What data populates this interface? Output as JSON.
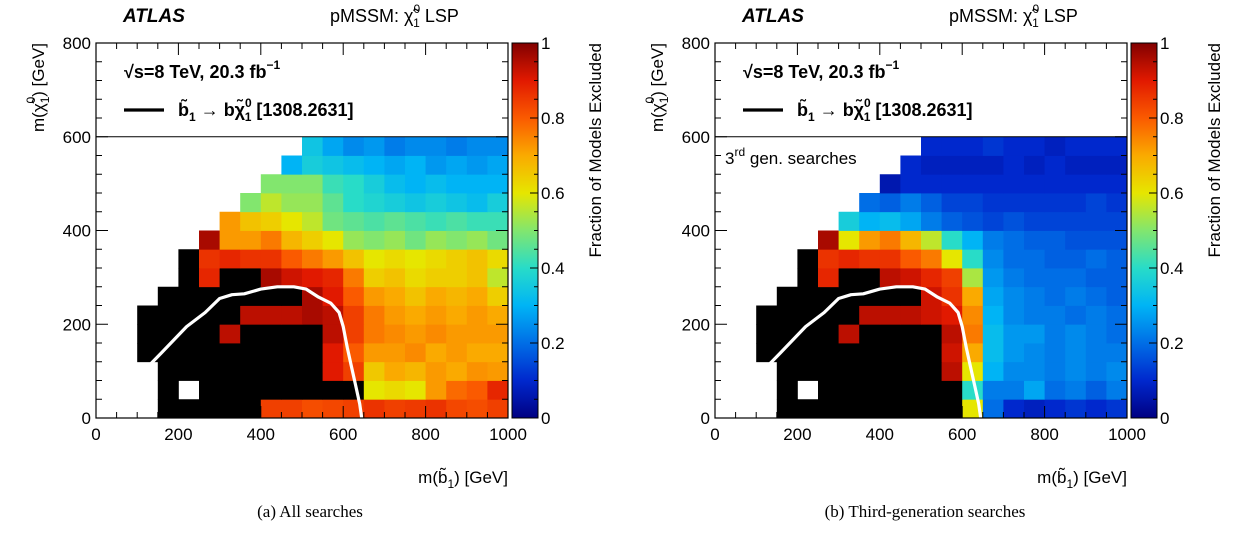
{
  "chart_data": [
    {
      "type": "heatmap",
      "experiment": "ATLAS",
      "model": "pMSSM: ",
      "model_symbol": "χ̃",
      "model_sup": "0",
      "model_sub": "1",
      "model_suffix": " LSP",
      "energy_label": "√s=8 TeV, 20.3 fb",
      "energy_sup": "−1",
      "legend_line": "b̃",
      "legend_sub1": "1",
      "legend_arrow": " → bχ̃",
      "legend_sup": "0",
      "legend_sub2": "1",
      "legend_ref": " [1308.2631]",
      "inner_label": "",
      "inner_label_sup": "",
      "inner_label_rest": "",
      "xlabel": "m(b̃",
      "xlabel_sub": "1",
      "xlabel_rest": ") [GeV]",
      "ylabel": "m(χ̃",
      "ylabel_sub": "1",
      "ylabel_sup": "0",
      "ylabel_rest": ") [GeV]",
      "zlabel": "Fraction of  Models Excluded",
      "xlim": [
        0,
        1000
      ],
      "ylim": [
        0,
        800
      ],
      "zlim": [
        0,
        1
      ],
      "x_ticks": [
        "0",
        "200",
        "400",
        "600",
        "800",
        "1000"
      ],
      "y_ticks": [
        "0",
        "200",
        "400",
        "600",
        "800"
      ],
      "z_ticks": [
        "0",
        "0.2",
        "0.4",
        "0.6",
        "0.8",
        "1"
      ],
      "x_bin_edges_start": 0,
      "x_bin_width": 50,
      "y_bin_edges_start": 0,
      "y_bin_width": 40,
      "rows": [
        [
          null,
          null,
          null,
          1.0,
          1.0,
          1.0,
          1.0,
          1.0,
          0.84,
          0.84,
          0.82,
          0.83,
          0.84,
          0.86,
          0.84,
          0.85,
          0.86,
          0.83,
          0.82,
          0.84
        ],
        [
          null,
          null,
          null,
          1.0,
          null,
          1.0,
          1.0,
          1.0,
          1.0,
          1.0,
          1.0,
          1.0,
          1.0,
          0.6,
          0.62,
          0.6,
          0.72,
          0.78,
          0.8,
          0.88
        ],
        [
          null,
          null,
          null,
          1.0,
          1.0,
          1.0,
          1.0,
          1.0,
          1.0,
          1.0,
          1.0,
          0.9,
          0.84,
          0.65,
          0.7,
          0.68,
          0.72,
          0.7,
          0.73,
          0.72
        ],
        [
          null,
          null,
          1.0,
          1.0,
          1.0,
          1.0,
          1.0,
          1.0,
          1.0,
          1.0,
          1.0,
          0.9,
          0.8,
          0.72,
          0.72,
          0.74,
          0.7,
          0.72,
          0.7,
          0.7
        ],
        [
          null,
          null,
          1.0,
          1.0,
          1.0,
          1.0,
          0.94,
          1.0,
          1.0,
          1.0,
          1.0,
          0.94,
          0.84,
          0.76,
          0.74,
          0.72,
          0.74,
          0.72,
          0.72,
          0.72
        ],
        [
          null,
          null,
          1.0,
          1.0,
          1.0,
          1.0,
          1.0,
          0.94,
          0.94,
          0.94,
          0.96,
          0.94,
          0.84,
          0.76,
          0.72,
          0.7,
          0.72,
          0.7,
          0.72,
          0.7
        ],
        [
          null,
          null,
          null,
          1.0,
          1.0,
          1.0,
          1.0,
          1.0,
          1.0,
          1.0,
          0.96,
          0.9,
          0.8,
          0.72,
          0.7,
          0.66,
          0.7,
          0.68,
          0.7,
          0.64
        ],
        [
          null,
          null,
          null,
          null,
          1.0,
          0.88,
          1.0,
          1.0,
          0.96,
          0.92,
          0.9,
          0.88,
          0.76,
          0.64,
          0.66,
          0.62,
          0.64,
          0.64,
          0.66,
          0.56
        ],
        [
          null,
          null,
          null,
          null,
          1.0,
          0.86,
          0.88,
          0.86,
          0.86,
          0.8,
          0.76,
          0.72,
          0.66,
          0.6,
          0.62,
          0.6,
          0.62,
          0.64,
          0.66,
          0.62
        ],
        [
          null,
          null,
          null,
          null,
          null,
          0.96,
          0.72,
          0.72,
          0.76,
          0.68,
          0.64,
          0.6,
          0.52,
          0.5,
          0.52,
          0.48,
          0.52,
          0.5,
          0.52,
          0.48
        ],
        [
          null,
          null,
          null,
          null,
          null,
          null,
          0.72,
          0.66,
          0.64,
          0.6,
          0.56,
          0.48,
          0.46,
          0.44,
          0.46,
          0.44,
          0.42,
          0.44,
          0.42,
          0.42
        ],
        [
          null,
          null,
          null,
          null,
          null,
          null,
          null,
          0.5,
          0.56,
          0.52,
          0.52,
          0.46,
          0.4,
          0.38,
          0.36,
          0.34,
          0.36,
          0.34,
          0.32,
          0.36
        ],
        [
          null,
          null,
          null,
          null,
          null,
          null,
          null,
          null,
          0.5,
          0.5,
          0.5,
          0.42,
          0.4,
          0.36,
          0.32,
          0.3,
          0.32,
          0.3,
          0.3,
          0.3
        ],
        [
          null,
          null,
          null,
          null,
          null,
          null,
          null,
          null,
          null,
          0.3,
          0.36,
          0.34,
          0.32,
          0.3,
          0.28,
          0.3,
          0.26,
          0.28,
          0.26,
          0.28
        ],
        [
          null,
          null,
          null,
          null,
          null,
          null,
          null,
          null,
          null,
          null,
          0.34,
          0.28,
          0.24,
          0.26,
          0.22,
          0.24,
          0.24,
          0.22,
          0.24,
          0.24
        ]
      ],
      "contour": [
        [
          110,
          95
        ],
        [
          160,
          140
        ],
        [
          220,
          195
        ],
        [
          265,
          225
        ],
        [
          300,
          255
        ],
        [
          330,
          263
        ],
        [
          360,
          265
        ],
        [
          400,
          275
        ],
        [
          440,
          280
        ],
        [
          480,
          280
        ],
        [
          510,
          275
        ],
        [
          540,
          258
        ],
        [
          570,
          245
        ],
        [
          590,
          225
        ],
        [
          600,
          195
        ],
        [
          610,
          150
        ],
        [
          620,
          110
        ],
        [
          630,
          70
        ],
        [
          640,
          30
        ],
        [
          645,
          0
        ]
      ]
    },
    {
      "type": "heatmap",
      "experiment": "ATLAS",
      "model": "pMSSM: ",
      "model_symbol": "χ̃",
      "model_sup": "0",
      "model_sub": "1",
      "model_suffix": " LSP",
      "energy_label": "√s=8 TeV, 20.3 fb",
      "energy_sup": "−1",
      "legend_line": "b̃",
      "legend_sub1": "1",
      "legend_arrow": " → bχ̃",
      "legend_sup": "0",
      "legend_sub2": "1",
      "legend_ref": " [1308.2631]",
      "inner_label": "3",
      "inner_label_sup": "rd",
      "inner_label_rest": " gen. searches",
      "xlabel": "m(b̃",
      "xlabel_sub": "1",
      "xlabel_rest": ") [GeV]",
      "ylabel": "m(χ̃",
      "ylabel_sub": "1",
      "ylabel_sup": "0",
      "ylabel_rest": ") [GeV]",
      "zlabel": "Fraction of  Models Excluded",
      "xlim": [
        0,
        1000
      ],
      "ylim": [
        0,
        800
      ],
      "zlim": [
        0,
        1
      ],
      "x_ticks": [
        "0",
        "200",
        "400",
        "600",
        "800",
        "1000"
      ],
      "y_ticks": [
        "0",
        "200",
        "400",
        "600",
        "800"
      ],
      "z_ticks": [
        "0",
        "0.2",
        "0.4",
        "0.6",
        "0.8",
        "1"
      ],
      "x_bin_edges_start": 0,
      "x_bin_width": 50,
      "y_bin_edges_start": 0,
      "y_bin_width": 40,
      "rows": [
        [
          null,
          null,
          null,
          1.0,
          1.0,
          1.0,
          1.0,
          1.0,
          1.0,
          1.0,
          1.0,
          1.0,
          0.6,
          0.2,
          0.1,
          0.08,
          0.1,
          0.12,
          0.1,
          0.12
        ],
        [
          null,
          null,
          null,
          1.0,
          null,
          1.0,
          1.0,
          1.0,
          1.0,
          1.0,
          1.0,
          1.0,
          0.4,
          0.22,
          0.22,
          0.28,
          0.2,
          0.22,
          0.18,
          0.22
        ],
        [
          null,
          null,
          null,
          1.0,
          1.0,
          1.0,
          1.0,
          1.0,
          1.0,
          1.0,
          1.0,
          0.94,
          0.6,
          0.3,
          0.24,
          0.24,
          0.22,
          0.24,
          0.22,
          0.24
        ],
        [
          null,
          null,
          1.0,
          1.0,
          1.0,
          1.0,
          1.0,
          1.0,
          1.0,
          1.0,
          1.0,
          0.92,
          0.7,
          0.32,
          0.26,
          0.24,
          0.22,
          0.24,
          0.22,
          0.22
        ],
        [
          null,
          null,
          1.0,
          1.0,
          1.0,
          1.0,
          0.94,
          1.0,
          1.0,
          1.0,
          1.0,
          0.94,
          0.76,
          0.32,
          0.26,
          0.26,
          0.22,
          0.24,
          0.22,
          0.2
        ],
        [
          null,
          null,
          1.0,
          1.0,
          1.0,
          1.0,
          1.0,
          0.94,
          0.94,
          0.94,
          0.92,
          0.9,
          0.74,
          0.3,
          0.24,
          0.22,
          0.22,
          0.2,
          0.22,
          0.2
        ],
        [
          null,
          null,
          null,
          1.0,
          1.0,
          1.0,
          1.0,
          1.0,
          1.0,
          1.0,
          0.92,
          0.86,
          0.7,
          0.28,
          0.24,
          0.22,
          0.2,
          0.22,
          0.2,
          0.18
        ],
        [
          null,
          null,
          null,
          null,
          1.0,
          0.88,
          1.0,
          1.0,
          0.94,
          0.92,
          0.88,
          0.84,
          0.54,
          0.26,
          0.22,
          0.2,
          0.2,
          0.2,
          0.18,
          0.18
        ],
        [
          null,
          null,
          null,
          null,
          1.0,
          0.86,
          0.88,
          0.86,
          0.86,
          0.8,
          0.76,
          0.6,
          0.4,
          0.24,
          0.2,
          0.2,
          0.18,
          0.18,
          0.2,
          0.18
        ],
        [
          null,
          null,
          null,
          null,
          null,
          0.96,
          0.6,
          0.72,
          0.76,
          0.68,
          0.56,
          0.4,
          0.3,
          0.22,
          0.2,
          0.18,
          0.18,
          0.16,
          0.16,
          0.16
        ],
        [
          null,
          null,
          null,
          null,
          null,
          null,
          0.36,
          0.3,
          0.32,
          0.28,
          0.22,
          0.18,
          0.16,
          0.14,
          0.16,
          0.14,
          0.14,
          0.14,
          0.14,
          0.14
        ],
        [
          null,
          null,
          null,
          null,
          null,
          null,
          null,
          0.2,
          0.18,
          0.22,
          0.18,
          0.14,
          0.14,
          0.12,
          0.12,
          0.12,
          0.12,
          0.12,
          0.14,
          0.12
        ],
        [
          null,
          null,
          null,
          null,
          null,
          null,
          null,
          null,
          0.06,
          0.1,
          0.1,
          0.1,
          0.1,
          0.1,
          0.1,
          0.1,
          0.1,
          0.1,
          0.1,
          0.1
        ],
        [
          null,
          null,
          null,
          null,
          null,
          null,
          null,
          null,
          null,
          0.1,
          0.08,
          0.08,
          0.08,
          0.08,
          0.1,
          0.08,
          0.1,
          0.08,
          0.08,
          0.08
        ],
        [
          null,
          null,
          null,
          null,
          null,
          null,
          null,
          null,
          null,
          null,
          0.1,
          0.1,
          0.1,
          0.12,
          0.1,
          0.1,
          0.08,
          0.1,
          0.1,
          0.1
        ]
      ],
      "contour": [
        [
          110,
          95
        ],
        [
          160,
          140
        ],
        [
          220,
          195
        ],
        [
          265,
          225
        ],
        [
          300,
          255
        ],
        [
          330,
          263
        ],
        [
          360,
          265
        ],
        [
          400,
          275
        ],
        [
          440,
          280
        ],
        [
          480,
          280
        ],
        [
          510,
          275
        ],
        [
          540,
          258
        ],
        [
          570,
          245
        ],
        [
          590,
          225
        ],
        [
          600,
          195
        ],
        [
          610,
          150
        ],
        [
          620,
          110
        ],
        [
          630,
          70
        ],
        [
          640,
          30
        ],
        [
          645,
          0
        ]
      ]
    }
  ],
  "captions": [
    "(a) All searches",
    "(b) Third-generation searches"
  ]
}
